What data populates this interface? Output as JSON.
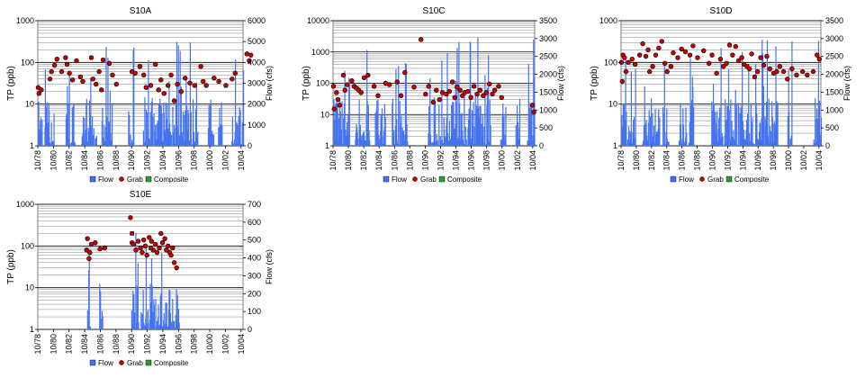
{
  "colors": {
    "flow": "#4472f0",
    "grab": "#cc0000",
    "composite": "#2e9a2e",
    "grid": "#808080",
    "gridMajor": "#000000"
  },
  "legend": {
    "flow": "Flow",
    "grab": "Grab",
    "composite": "Composite"
  },
  "chart_data": [
    {
      "type": "bar+scatter",
      "title": "S10A",
      "ylabel": "TP (ppb)",
      "y2label": "Flow (cfs)",
      "x_ticks": [
        "10/78",
        "10/80",
        "10/82",
        "10/84",
        "10/86",
        "10/88",
        "10/90",
        "10/92",
        "10/94",
        "10/96",
        "10/98",
        "10/00",
        "10/02",
        "10/04"
      ],
      "ylim": [
        1,
        1000
      ],
      "y_ticks": [
        "1",
        "10",
        "100",
        "1000"
      ],
      "y_scale": "log",
      "y2lim": [
        0,
        6000
      ],
      "y2_ticks": [
        "0",
        "1000",
        "2000",
        "3000",
        "4000",
        "5000",
        "6000"
      ],
      "flow_active": [
        [
          1978.8,
          1979.3
        ],
        [
          1979.6,
          1980.8
        ],
        [
          1982.3,
          1983.5
        ],
        [
          1984.3,
          1986.3
        ],
        [
          1986.9,
          1988.2
        ],
        [
          1990.3,
          1991.0
        ],
        [
          1992.2,
          1999.2
        ],
        [
          2000.5,
          2001.2
        ],
        [
          2001.8,
          2002.3
        ],
        [
          2003.5,
          2005.0
        ]
      ],
      "flow_peak": 5200,
      "seed": 11,
      "grab": [
        [
          1978.8,
          25
        ],
        [
          1978.9,
          18
        ],
        [
          1979.2,
          22
        ],
        [
          1980.3,
          40
        ],
        [
          1980.5,
          60
        ],
        [
          1980.9,
          85
        ],
        [
          1981.2,
          120
        ],
        [
          1981.8,
          60
        ],
        [
          1982.3,
          130
        ],
        [
          1982.5,
          90
        ],
        [
          1982.8,
          55
        ],
        [
          1983.2,
          38
        ],
        [
          1983.7,
          110
        ],
        [
          1984.2,
          45
        ],
        [
          1984.5,
          35
        ],
        [
          1985.6,
          130
        ],
        [
          1985.8,
          40
        ],
        [
          1986.2,
          30
        ],
        [
          1986.6,
          60
        ],
        [
          1986.9,
          22
        ],
        [
          1987.1,
          115
        ],
        [
          1987.9,
          95
        ],
        [
          1988.3,
          50
        ],
        [
          1988.8,
          30
        ],
        [
          1990.8,
          60
        ],
        [
          1991.2,
          55
        ],
        [
          1991.8,
          80
        ],
        [
          1992.3,
          50
        ],
        [
          1992.6,
          25
        ],
        [
          1993.2,
          28
        ],
        [
          1993.8,
          90
        ],
        [
          1994.2,
          22
        ],
        [
          1994.5,
          38
        ],
        [
          1994.9,
          18
        ],
        [
          1995.4,
          28
        ],
        [
          1995.8,
          50
        ],
        [
          1996.2,
          12
        ],
        [
          1996.6,
          30
        ],
        [
          1997.1,
          20
        ],
        [
          1997.6,
          42
        ],
        [
          1998.2,
          32
        ],
        [
          1998.8,
          28
        ],
        [
          1999.6,
          80
        ],
        [
          1999.9,
          35
        ],
        [
          2000.3,
          28
        ],
        [
          2001.3,
          42
        ],
        [
          2001.9,
          35
        ],
        [
          2002.8,
          28
        ],
        [
          2003.6,
          40
        ],
        [
          2004.0,
          55
        ],
        [
          2005.5,
          160
        ],
        [
          2005.8,
          110
        ],
        [
          2006.0,
          150
        ]
      ],
      "composite": []
    },
    {
      "type": "bar+scatter",
      "title": "S10C",
      "ylabel": "TP (ppb)",
      "y2label": "Flow (cfs)",
      "x_ticks": [
        "10/78",
        "10/80",
        "10/82",
        "10/84",
        "10/86",
        "10/88",
        "10/90",
        "10/92",
        "10/94",
        "10/96",
        "10/98",
        "10/00",
        "10/02",
        "10/04"
      ],
      "ylim": [
        1,
        10000
      ],
      "y_ticks": [
        "1",
        "10",
        "100",
        "1000",
        "10000"
      ],
      "y_scale": "log",
      "y2lim": [
        0,
        3500
      ],
      "y2_ticks": [
        "0",
        "500",
        "1000",
        "1500",
        "2000",
        "2500",
        "3000",
        "3500"
      ],
      "flow_active": [
        [
          1978.8,
          1980.9
        ],
        [
          1981.6,
          1983.5
        ],
        [
          1984.2,
          1985.5
        ],
        [
          1986.4,
          1988.4
        ],
        [
          1991.1,
          1999.2
        ],
        [
          2000.5,
          2001.2
        ],
        [
          2002.5,
          2003.0
        ],
        [
          2004.0,
          2005.0
        ]
      ],
      "flow_peak": 3100,
      "seed": 23,
      "grab": [
        [
          1978.8,
          80
        ],
        [
          1978.9,
          15
        ],
        [
          1979.2,
          50
        ],
        [
          1979.4,
          30
        ],
        [
          1979.6,
          20
        ],
        [
          1980.1,
          180
        ],
        [
          1980.3,
          60
        ],
        [
          1980.6,
          90
        ],
        [
          1981.2,
          120
        ],
        [
          1981.5,
          80
        ],
        [
          1981.8,
          70
        ],
        [
          1982.1,
          60
        ],
        [
          1982.4,
          50
        ],
        [
          1982.8,
          150
        ],
        [
          1983.3,
          180
        ],
        [
          1984.1,
          80
        ],
        [
          1984.6,
          40
        ],
        [
          1985.6,
          100
        ],
        [
          1986.1,
          90
        ],
        [
          1987.1,
          110
        ],
        [
          1987.6,
          40
        ],
        [
          1988.1,
          220
        ],
        [
          1989.3,
          75
        ],
        [
          1990.2,
          2500
        ],
        [
          1990.8,
          45
        ],
        [
          1991.2,
          80
        ],
        [
          1991.8,
          25
        ],
        [
          1992.2,
          60
        ],
        [
          1992.6,
          30
        ],
        [
          1993.0,
          50
        ],
        [
          1993.5,
          45
        ],
        [
          1993.9,
          55
        ],
        [
          1994.3,
          110
        ],
        [
          1994.6,
          35
        ],
        [
          1994.9,
          75
        ],
        [
          1995.3,
          60
        ],
        [
          1995.6,
          40
        ],
        [
          1995.9,
          50
        ],
        [
          1996.3,
          55
        ],
        [
          1996.7,
          35
        ],
        [
          1997.1,
          80
        ],
        [
          1997.5,
          45
        ],
        [
          1997.9,
          60
        ],
        [
          1998.3,
          40
        ],
        [
          1998.7,
          50
        ],
        [
          1999.1,
          95
        ],
        [
          1999.5,
          45
        ],
        [
          1999.8,
          60
        ],
        [
          2000.3,
          80
        ],
        [
          2000.7,
          35
        ],
        [
          2004.7,
          20
        ],
        [
          2004.9,
          12
        ]
      ],
      "composite": []
    },
    {
      "type": "bar+scatter",
      "title": "S10D",
      "ylabel": "TP (ppb)",
      "y2label": "Flow (cfs)",
      "x_ticks": [
        "10/78",
        "10/80",
        "10/82",
        "10/84",
        "10/86",
        "10/88",
        "10/90",
        "10/92",
        "10/94",
        "10/96",
        "10/98",
        "10/00",
        "10/02",
        "10/04"
      ],
      "ylim": [
        1,
        1000
      ],
      "y_ticks": [
        "1",
        "10",
        "100",
        "1000"
      ],
      "y_scale": "log",
      "y2lim": [
        0,
        3500
      ],
      "y2_ticks": [
        "0",
        "500",
        "1000",
        "1500",
        "2000",
        "2500",
        "3000",
        "3500"
      ],
      "flow_active": [
        [
          1978.8,
          1980.6
        ],
        [
          1981.5,
          1983.8
        ],
        [
          1984.2,
          1985.0
        ],
        [
          1986.3,
          1987.3
        ],
        [
          1987.6,
          1988.3
        ],
        [
          1990.6,
          1992.1
        ],
        [
          1992.3,
          1999.3
        ],
        [
          2000.6,
          2001.2
        ],
        [
          2004.0,
          2005.0
        ]
      ],
      "flow_peak": 3000,
      "seed": 37,
      "grab": [
        [
          1978.8,
          100
        ],
        [
          1978.9,
          35
        ],
        [
          1979.0,
          150
        ],
        [
          1979.2,
          130
        ],
        [
          1979.4,
          60
        ],
        [
          1979.7,
          100
        ],
        [
          1980.2,
          120
        ],
        [
          1980.6,
          90
        ],
        [
          1981.2,
          150
        ],
        [
          1981.6,
          280
        ],
        [
          1982.0,
          140
        ],
        [
          1982.3,
          200
        ],
        [
          1982.5,
          60
        ],
        [
          1982.9,
          80
        ],
        [
          1983.3,
          150
        ],
        [
          1983.7,
          220
        ],
        [
          1984.1,
          320
        ],
        [
          1984.5,
          95
        ],
        [
          1984.8,
          60
        ],
        [
          1985.3,
          80
        ],
        [
          1985.6,
          170
        ],
        [
          1986.2,
          130
        ],
        [
          1986.7,
          210
        ],
        [
          1987.2,
          180
        ],
        [
          1987.8,
          150
        ],
        [
          1988.2,
          250
        ],
        [
          1988.8,
          130
        ],
        [
          1989.6,
          190
        ],
        [
          1990.3,
          95
        ],
        [
          1990.7,
          150
        ],
        [
          1991.3,
          55
        ],
        [
          1991.8,
          120
        ],
        [
          1992.2,
          80
        ],
        [
          1992.6,
          95
        ],
        [
          1993.0,
          260
        ],
        [
          1993.4,
          150
        ],
        [
          1993.8,
          240
        ],
        [
          1994.2,
          110
        ],
        [
          1994.6,
          130
        ],
        [
          1994.9,
          90
        ],
        [
          1995.3,
          80
        ],
        [
          1995.6,
          70
        ],
        [
          1995.9,
          160
        ],
        [
          1996.3,
          45
        ],
        [
          1996.7,
          60
        ],
        [
          1997.1,
          130
        ],
        [
          1997.5,
          85
        ],
        [
          1997.9,
          140
        ],
        [
          1998.3,
          70
        ],
        [
          1998.8,
          55
        ],
        [
          1999.2,
          60
        ],
        [
          1999.6,
          80
        ],
        [
          2000.1,
          60
        ],
        [
          2000.6,
          40
        ],
        [
          2001.2,
          70
        ],
        [
          2001.8,
          50
        ],
        [
          2002.6,
          60
        ],
        [
          2003.2,
          50
        ],
        [
          2004.0,
          60
        ],
        [
          2004.5,
          150
        ],
        [
          2004.8,
          120
        ]
      ],
      "composite": []
    },
    {
      "type": "bar+scatter",
      "title": "S10E",
      "ylabel": "TP (ppb)",
      "y2label": "Flow (cfs)",
      "x_ticks": [
        "10/78",
        "10/80",
        "10/82",
        "10/84",
        "10/86",
        "10/88",
        "10/90",
        "10/92",
        "10/94",
        "10/96",
        "10/98",
        "10/00",
        "10/02",
        "10/04"
      ],
      "ylim": [
        1,
        1000
      ],
      "y_ticks": [
        "1",
        "10",
        "100",
        "1000"
      ],
      "y_scale": "log",
      "y2lim": [
        0,
        700
      ],
      "y2_ticks": [
        "0",
        "100",
        "200",
        "300",
        "400",
        "500",
        "600",
        "700"
      ],
      "flow_active": [
        [
          1985.0,
          1985.5
        ],
        [
          1986.6,
          1987.0
        ],
        [
          1990.7,
          1991.6
        ],
        [
          1991.9,
          1996.8
        ]
      ],
      "flow_peak": 570,
      "seed": 53,
      "grab": [
        [
          1985.0,
          80
        ],
        [
          1985.1,
          150
        ],
        [
          1985.3,
          50
        ],
        [
          1985.4,
          70
        ],
        [
          1985.6,
          110
        ],
        [
          1986.1,
          120
        ],
        [
          1986.7,
          85
        ],
        [
          1987.3,
          90
        ],
        [
          1990.6,
          480
        ],
        [
          1990.8,
          120
        ],
        [
          1991.0,
          110
        ],
        [
          1991.3,
          80
        ],
        [
          1991.6,
          130
        ],
        [
          1991.9,
          90
        ],
        [
          1992.1,
          70
        ],
        [
          1992.3,
          140
        ],
        [
          1992.5,
          100
        ],
        [
          1992.7,
          60
        ],
        [
          1993.0,
          160
        ],
        [
          1993.3,
          130
        ],
        [
          1993.5,
          80
        ],
        [
          1993.8,
          110
        ],
        [
          1994.0,
          70
        ],
        [
          1994.3,
          90
        ],
        [
          1994.5,
          200
        ],
        [
          1994.7,
          120
        ],
        [
          1995.0,
          150
        ],
        [
          1995.2,
          80
        ],
        [
          1995.4,
          100
        ],
        [
          1995.6,
          70
        ],
        [
          1995.8,
          60
        ],
        [
          1996.0,
          90
        ],
        [
          1996.2,
          40
        ],
        [
          1996.5,
          30
        ]
      ],
      "composite": [
        [
          1990.8,
          200
        ],
        [
          1993.2,
          90
        ]
      ]
    }
  ]
}
